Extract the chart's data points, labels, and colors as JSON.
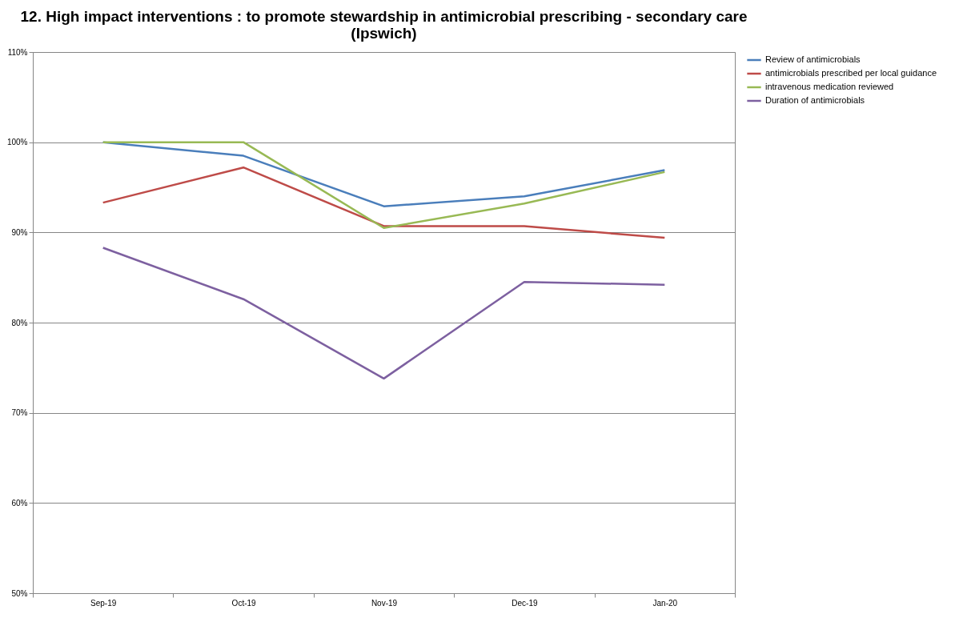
{
  "chart_data": {
    "type": "line",
    "title": "12. High impact interventions : to promote stewardship in antimicrobial prescribing - secondary care\n(Ipswich)",
    "categories": [
      "Sep-19",
      "Oct-19",
      "Nov-19",
      "Dec-19",
      "Jan-20"
    ],
    "series": [
      {
        "name": "Review of antimicrobials",
        "color": "#4a7ebb",
        "values": [
          100,
          98.5,
          92.9,
          94.0,
          96.9
        ]
      },
      {
        "name": "antimicrobials prescribed per local guidance",
        "color": "#be4b48",
        "values": [
          93.3,
          97.2,
          90.7,
          90.7,
          89.4
        ]
      },
      {
        "name": "intravenous medication reviewed",
        "color": "#98b954",
        "values": [
          100,
          100,
          90.5,
          93.2,
          96.7
        ]
      },
      {
        "name": "Duration of antimicrobials",
        "color": "#7d60a0",
        "values": [
          88.3,
          82.6,
          73.8,
          84.5,
          84.2
        ]
      }
    ],
    "ylim": [
      50,
      110
    ],
    "yticks": [
      {
        "value": 50,
        "label": "50%"
      },
      {
        "value": 60,
        "label": "60%"
      },
      {
        "value": 70,
        "label": "70%"
      },
      {
        "value": 80,
        "label": "80%"
      },
      {
        "value": 90,
        "label": "90%"
      },
      {
        "value": 100,
        "label": "100%"
      },
      {
        "value": 110,
        "label": "110%"
      }
    ],
    "grid": "y",
    "legend": "right",
    "marker": "none",
    "line_style": "solid"
  }
}
